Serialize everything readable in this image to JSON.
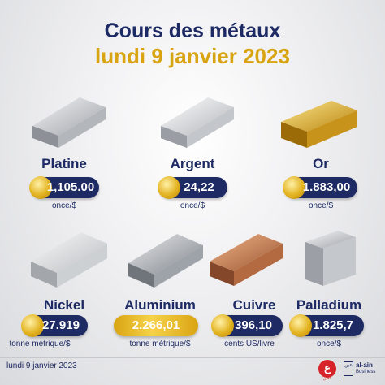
{
  "header": {
    "title": "Cours des métaux",
    "date": "lundi 9 janvier 2023"
  },
  "metals": [
    {
      "name": "Platine",
      "value": "1,105.00",
      "unit": "once/$",
      "color": "#cfd2d6",
      "pill": "navy"
    },
    {
      "name": "Argent",
      "value": "24,22",
      "unit": "once/$",
      "color": "#e3e4e6",
      "pill": "navy"
    },
    {
      "name": "Or",
      "value": "1.883,00",
      "unit": "once/$",
      "color": "#e2ad1e",
      "pill": "navy"
    },
    {
      "name": "Nickel",
      "value": "27.919",
      "unit": "tonne métrique/$",
      "color": "#d8d9db",
      "pill": "navy"
    },
    {
      "name": "Aluminium",
      "value": "2.266,01",
      "unit": "tonne métrique/$",
      "color": "#b8bcc2",
      "pill": "gold"
    },
    {
      "name": "Cuivre",
      "value": "396,10",
      "unit": "cents US/livre",
      "color": "#c98050",
      "pill": "navy"
    },
    {
      "name": "Palladium",
      "value": "1.825,7",
      "unit": "once/$",
      "color": "#c7cacf",
      "pill": "navy"
    }
  ],
  "footer": {
    "date": "lundi 9 janvier 2023",
    "logo1_glyph": "ع",
    "logo1_text": "العين",
    "logo2_box": "عين",
    "logo2_name": "al-ain",
    "logo2_sub": "Business"
  }
}
